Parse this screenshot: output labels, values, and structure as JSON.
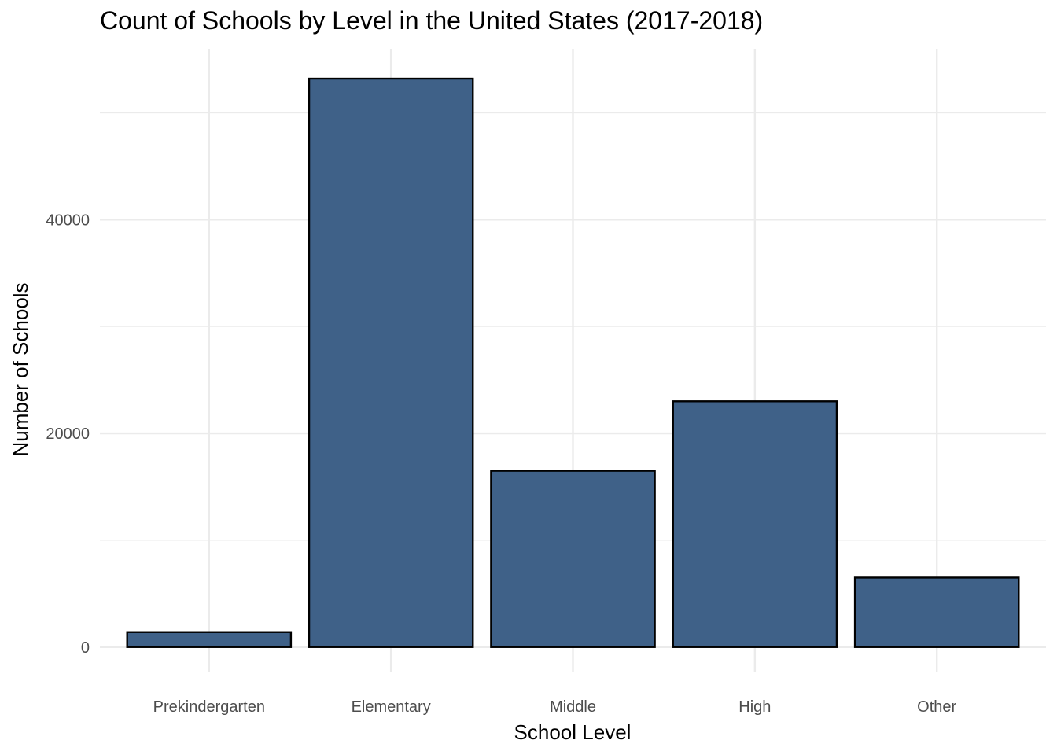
{
  "chart_data": {
    "type": "bar",
    "title": "Count of Schools by Level in the United States (2017-2018)",
    "xlabel": "School Level",
    "ylabel": "Number of Schools",
    "categories": [
      "Prekindergarten",
      "Elementary",
      "Middle",
      "High",
      "Other"
    ],
    "values": [
      1400,
      53200,
      16500,
      23000,
      6500
    ],
    "yticks": [
      0,
      20000,
      40000
    ],
    "ytick_labels": [
      "0",
      "20000",
      "40000"
    ],
    "ylim": [
      -2300,
      56000
    ],
    "grid": true,
    "legend": "none",
    "colors": {
      "bar_fill": "#3f6188",
      "bar_stroke": "#000000",
      "grid": "#ebebeb"
    }
  }
}
